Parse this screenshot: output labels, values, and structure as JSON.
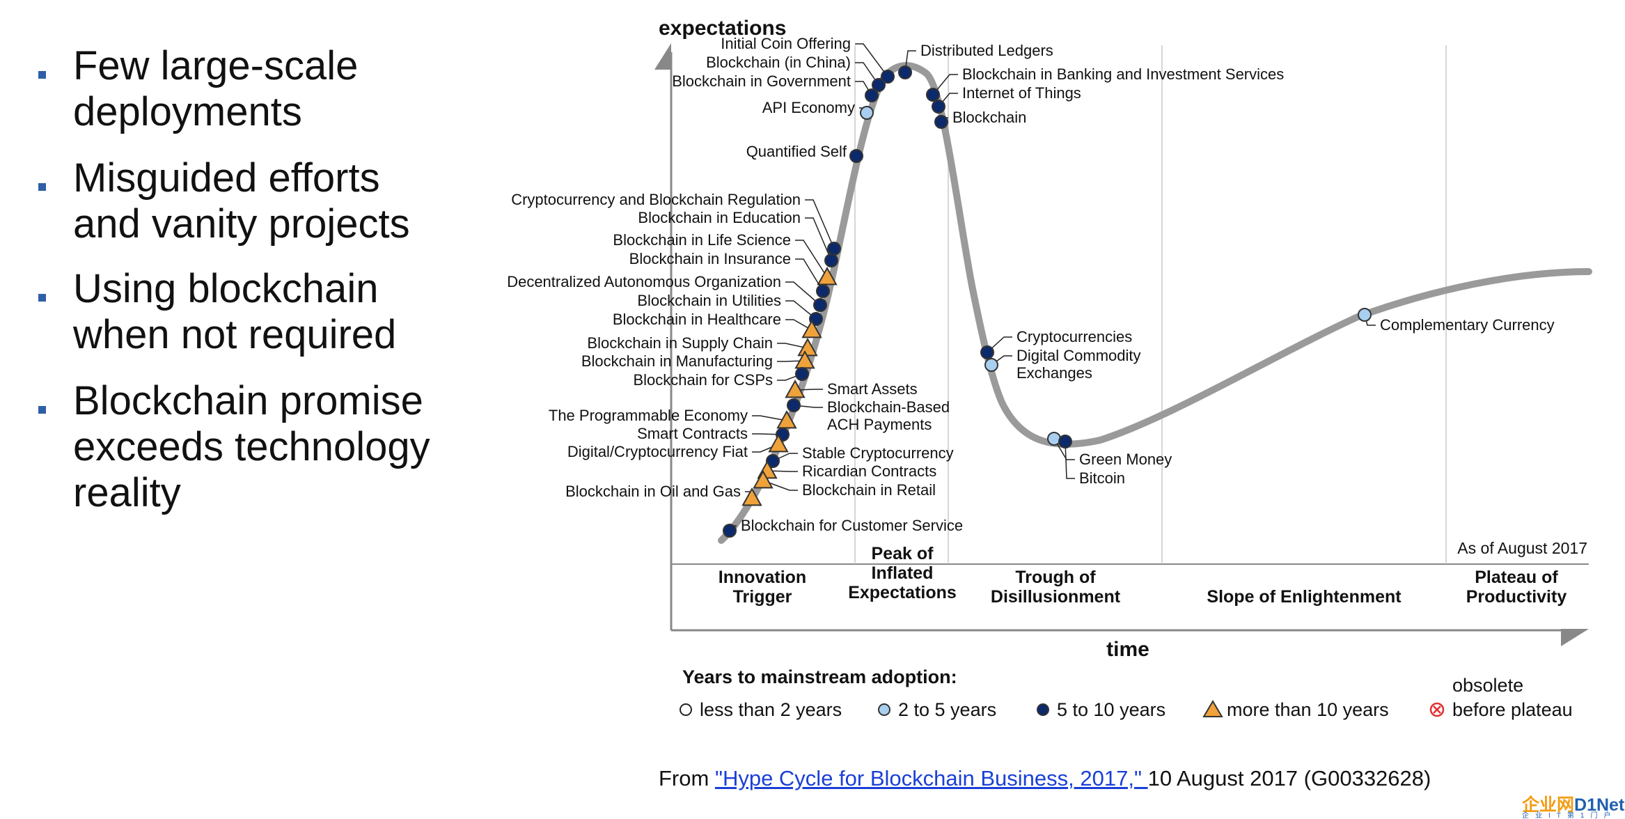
{
  "bullets": [
    {
      "lines": [
        "Few large-scale",
        "deployments"
      ]
    },
    {
      "lines": [
        "Misguided efforts",
        "and vanity projects"
      ]
    },
    {
      "lines": [
        "Using blockchain",
        "when not required"
      ]
    },
    {
      "lines": [
        "Blockchain  promise",
        "exceeds technology",
        "reality"
      ]
    }
  ],
  "chart_data": {
    "type": "hype-cycle",
    "ylabel": "expectations",
    "xlabel": "time",
    "as_of": "As of August 2017",
    "phases": [
      {
        "name": [
          "Innovation",
          "Trigger"
        ]
      },
      {
        "name": [
          "Peak of",
          "Inflated",
          "Expectations"
        ]
      },
      {
        "name": [
          "Trough of",
          "Disillusionment"
        ]
      },
      {
        "name": [
          "Slope of Enlightenment"
        ]
      },
      {
        "name": [
          "Plateau of",
          "Productivity"
        ]
      }
    ],
    "legend": {
      "title": "Years to mainstream adoption:",
      "items": [
        {
          "label": "less than 2 years",
          "marker": "open-circle"
        },
        {
          "label": "2 to 5 years",
          "marker": "light-blue-circle",
          "color": "#a9cff0"
        },
        {
          "label": "5 to 10 years",
          "marker": "dark-blue-circle",
          "color": "#0c2a6b"
        },
        {
          "label": "more than 10 years",
          "marker": "orange-triangle",
          "color": "#f0a23a"
        },
        {
          "label": [
            "obsolete",
            "before plateau"
          ],
          "marker": "red-x-circle",
          "color": "#e03030"
        }
      ]
    },
    "technologies": [
      {
        "name": "Initial Coin Offering",
        "adoption": "5 to 10 years"
      },
      {
        "name": "Blockchain (in China)",
        "adoption": "5 to 10 years"
      },
      {
        "name": "Blockchain in Government",
        "adoption": "5 to 10 years"
      },
      {
        "name": "API Economy",
        "adoption": "2 to 5 years"
      },
      {
        "name": "Quantified Self",
        "adoption": "5 to 10 years"
      },
      {
        "name": "Distributed Ledgers",
        "adoption": "5 to 10 years"
      },
      {
        "name": "Blockchain in Banking and Investment Services",
        "adoption": "5 to 10 years"
      },
      {
        "name": "Internet of Things",
        "adoption": "5 to 10 years"
      },
      {
        "name": "Blockchain",
        "adoption": "5 to 10 years"
      },
      {
        "name": "Cryptocurrency and Blockchain Regulation",
        "adoption": "5 to 10 years"
      },
      {
        "name": "Blockchain in Education",
        "adoption": "5 to 10 years"
      },
      {
        "name": "Blockchain in Life Science",
        "adoption": "more than 10 years"
      },
      {
        "name": "Blockchain in Insurance",
        "adoption": "5 to 10 years"
      },
      {
        "name": "Decentralized Autonomous Organization",
        "adoption": "5 to 10 years"
      },
      {
        "name": "Blockchain in Utilities",
        "adoption": "5 to 10 years"
      },
      {
        "name": "Blockchain in Healthcare",
        "adoption": "more than 10 years"
      },
      {
        "name": "Blockchain in Supply Chain",
        "adoption": "more than 10 years"
      },
      {
        "name": "Blockchain in Manufacturing",
        "adoption": "more than 10 years"
      },
      {
        "name": "Blockchain for CSPs",
        "adoption": "5 to 10 years"
      },
      {
        "name": "Smart Assets",
        "adoption": "more than 10 years"
      },
      {
        "name": "Blockchain-Based ACH Payments",
        "adoption": "5 to 10 years"
      },
      {
        "name": "The Programmable Economy",
        "adoption": "more than 10 years"
      },
      {
        "name": "Smart Contracts",
        "adoption": "5 to 10 years"
      },
      {
        "name": "Digital/Cryptocurrency Fiat",
        "adoption": "more than 10 years"
      },
      {
        "name": "Stable Cryptocurrency",
        "adoption": "5 to 10 years"
      },
      {
        "name": "Ricardian Contracts",
        "adoption": "more than 10 years"
      },
      {
        "name": "Blockchain in Retail",
        "adoption": "more than 10 years"
      },
      {
        "name": "Blockchain in Oil and Gas",
        "adoption": "more than 10 years"
      },
      {
        "name": "Blockchain for Customer Service",
        "adoption": "5 to 10 years"
      },
      {
        "name": "Cryptocurrencies",
        "adoption": "5 to 10 years"
      },
      {
        "name": "Digital Commodity Exchanges",
        "adoption": "2 to 5 years"
      },
      {
        "name": "Green Money",
        "adoption": "2 to 5 years"
      },
      {
        "name": "Bitcoin",
        "adoption": "5 to 10 years"
      },
      {
        "name": "Complementary Currency",
        "adoption": "2 to 5 years"
      }
    ]
  },
  "citation": {
    "prefix": "From ",
    "link": "\"Hype Cycle for Blockchain Business, 2017,\" ",
    "suffix": "10 August 2017 (G00332628)"
  },
  "logo": {
    "text_a": "企业网",
    "text_b": "D1Net",
    "sub": "企业IT第1门户"
  }
}
